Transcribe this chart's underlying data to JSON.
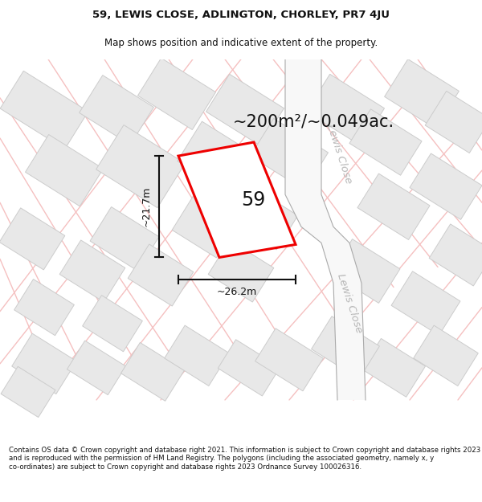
{
  "title_line1": "59, LEWIS CLOSE, ADLINGTON, CHORLEY, PR7 4JU",
  "title_line2": "Map shows position and indicative extent of the property.",
  "area_text": "~200m²/~0.049ac.",
  "number_label": "59",
  "dim_height": "~21.7m",
  "dim_width": "~26.2m",
  "road_label": "Lewis Close",
  "footer_text": "Contains OS data © Crown copyright and database right 2021. This information is subject to Crown copyright and database rights 2023 and is reproduced with the permission of HM Land Registry. The polygons (including the associated geometry, namely x, y co-ordinates) are subject to Crown copyright and database rights 2023 Ordnance Survey 100026316.",
  "map_bg": "#ffffff",
  "plot_fill": "#ffffff",
  "plot_edge": "#ee0000",
  "building_fill": "#e8e8e8",
  "building_edge": "#cccccc",
  "road_outline_color": "#f5c0c0",
  "road_edge_color": "#aaaaaa",
  "dim_line_color": "#111111",
  "road_text_color": "#b8b8b8",
  "title_color": "#111111",
  "footer_color": "#111111",
  "area_text_color": "#111111"
}
